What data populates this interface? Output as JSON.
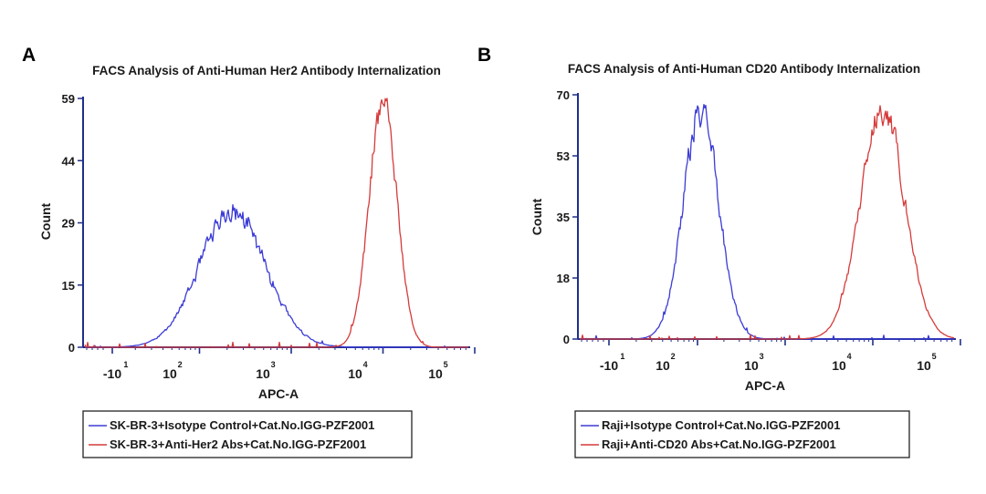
{
  "chart_data": [
    {
      "type": "line",
      "panel_label": "A",
      "title": "FACS Analysis of Anti-Human Her2 Antibody Internalization",
      "xlabel": "APC-A",
      "ylabel": "Count",
      "ylim": [
        0,
        59
      ],
      "y_ticks": [
        "0",
        "15",
        "29",
        "44",
        "59"
      ],
      "x_ticks": [
        {
          "value": -10,
          "base": "-10",
          "exp": "1"
        },
        {
          "value": 100,
          "base": "10",
          "exp": "2"
        },
        {
          "value": 1000,
          "base": "10",
          "exp": "3"
        },
        {
          "value": 10000,
          "base": "10",
          "exp": "4"
        },
        {
          "value": 100000,
          "base": "10",
          "exp": "5"
        }
      ],
      "series": [
        {
          "name": "SK-BR-3+Isotype Control+Cat.No.IGG-PZF2001",
          "color": "#3b3bd6",
          "peak_x": 230,
          "peak_count": 32,
          "width_decades": 0.36,
          "noise": 0.07
        },
        {
          "name": "SK-BR-3+Anti-Her2 Abs+Cat.No.IGG-PZF2001",
          "color": "#d63a3a",
          "peak_x": 10000,
          "peak_count": 58,
          "width_decades": 0.15,
          "noise": 0.05
        }
      ],
      "legend": [
        "SK-BR-3+Isotype Control+Cat.No.IGG-PZF2001",
        "SK-BR-3+Anti-Her2 Abs+Cat.No.IGG-PZF2001"
      ],
      "legend_position": "bottom"
    },
    {
      "type": "line",
      "panel_label": "B",
      "title": "FACS Analysis of Anti-Human CD20 Antibody Internalization",
      "xlabel": "APC-A",
      "ylabel": "Count",
      "ylim": [
        0,
        70
      ],
      "y_ticks": [
        "0",
        "18",
        "35",
        "53",
        "70"
      ],
      "x_ticks": [
        {
          "value": -10,
          "base": "-10",
          "exp": "1"
        },
        {
          "value": 100,
          "base": "10",
          "exp": "2"
        },
        {
          "value": 1000,
          "base": "10",
          "exp": "3"
        },
        {
          "value": 10000,
          "base": "10",
          "exp": "4"
        },
        {
          "value": 100000,
          "base": "10",
          "exp": "5"
        }
      ],
      "series": [
        {
          "name": "Raji+Isotype Control+Cat.No.IGG-PZF2001",
          "color": "#3b3bd6",
          "peak_x": 110,
          "peak_count": 66,
          "width_decades": 0.2,
          "noise": 0.06
        },
        {
          "name": "Raji+Anti-CD20 Abs+Cat.No.IGG-PZF2001",
          "color": "#d63a3a",
          "peak_x": 13000,
          "peak_count": 66,
          "width_decades": 0.25,
          "noise": 0.05
        }
      ],
      "legend": [
        "Raji+Isotype Control+Cat.No.IGG-PZF2001",
        "Raji+Anti-CD20 Abs+Cat.No.IGG-PZF2001"
      ],
      "legend_position": "bottom"
    }
  ]
}
